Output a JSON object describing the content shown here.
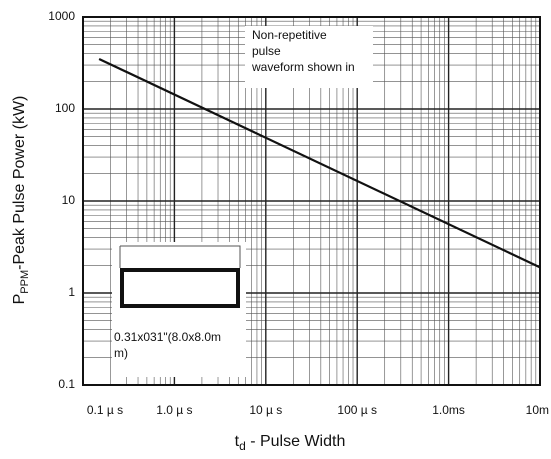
{
  "chart_data": {
    "type": "line",
    "xlabel": "t",
    "xlabel_sub": "d",
    "xlabel_rest": " - Pulse Width",
    "ylabel": "P",
    "ylabel_sub": "PPM",
    "ylabel_rest": "-Peak Pulse Power (kW)",
    "x": [
      0.15,
      10000
    ],
    "series": [
      {
        "color": "#111111",
        "values": [
          350,
          1.9
        ]
      }
    ],
    "xlim": [
      0.1,
      10000
    ],
    "ylim": [
      0.1,
      1000
    ],
    "log_x": true,
    "log_y": true,
    "grid": true,
    "xticks": [
      {
        "value": 0.1,
        "label": "0.1 µ s"
      },
      {
        "value": 1,
        "label": "1.0 µ s"
      },
      {
        "value": 10,
        "label": "10 µ s"
      },
      {
        "value": 100,
        "label": "100 µ s"
      },
      {
        "value": 1000,
        "label": "1.0ms"
      },
      {
        "value": 10000,
        "label": "10m"
      }
    ],
    "yticks": [
      0.1,
      1,
      10,
      100,
      1000
    ],
    "annotation": [
      "Non-repetitive",
      "pulse",
      "waveform shown in"
    ],
    "inset_label": [
      "0.31x031\"(8.0x8.0m",
      "m)"
    ]
  }
}
